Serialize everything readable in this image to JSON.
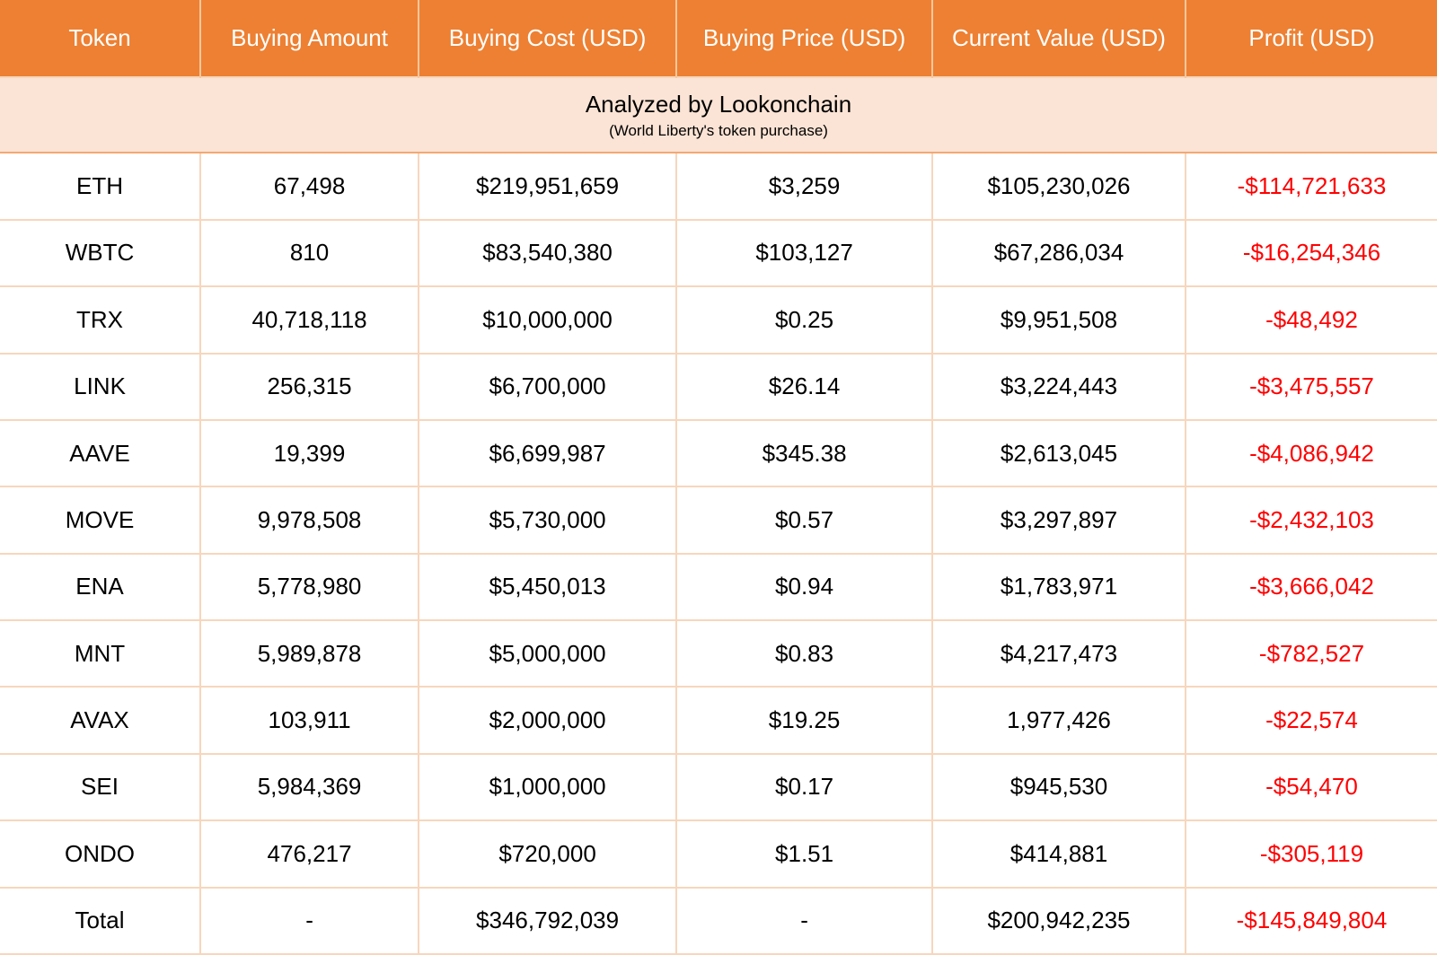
{
  "colors": {
    "header_bg": "#ED8032",
    "header_text": "#FFFFFF",
    "header_divider": "#F5C79E",
    "band_bg": "#FBE4D5",
    "grid_light": "#F7D6BC",
    "grid_strong": "#F2A873",
    "cell_text": "#000000",
    "profit_negative": "#FF0000"
  },
  "band": {
    "title": "Analyzed by Lookonchain",
    "note": "(World Liberty's token purchase)"
  },
  "chart_data": {
    "type": "table",
    "title": "Analyzed by Lookonchain",
    "subtitle": "(World Liberty's token purchase)",
    "columns": [
      "Token",
      "Buying Amount",
      "Buying Cost (USD)",
      "Buying Price (USD)",
      "Current Value (USD)",
      "Profit (USD)"
    ],
    "rows": [
      [
        "ETH",
        "67,498",
        "$219,951,659",
        "$3,259",
        "$105,230,026",
        "-$114,721,633"
      ],
      [
        "WBTC",
        "810",
        "$83,540,380",
        "$103,127",
        "$67,286,034",
        "-$16,254,346"
      ],
      [
        "TRX",
        "40,718,118",
        "$10,000,000",
        "$0.25",
        "$9,951,508",
        "-$48,492"
      ],
      [
        "LINK",
        "256,315",
        "$6,700,000",
        "$26.14",
        "$3,224,443",
        "-$3,475,557"
      ],
      [
        "AAVE",
        "19,399",
        "$6,699,987",
        "$345.38",
        "$2,613,045",
        "-$4,086,942"
      ],
      [
        "MOVE",
        "9,978,508",
        "$5,730,000",
        "$0.57",
        "$3,297,897",
        "-$2,432,103"
      ],
      [
        "ENA",
        "5,778,980",
        "$5,450,013",
        "$0.94",
        "$1,783,971",
        "-$3,666,042"
      ],
      [
        "MNT",
        "5,989,878",
        "$5,000,000",
        "$0.83",
        "$4,217,473",
        "-$782,527"
      ],
      [
        "AVAX",
        "103,911",
        "$2,000,000",
        "$19.25",
        "1,977,426",
        "-$22,574"
      ],
      [
        "SEI",
        "5,984,369",
        "$1,000,000",
        "$0.17",
        "$945,530",
        "-$54,470"
      ],
      [
        "ONDO",
        "476,217",
        "$720,000",
        "$1.51",
        "$414,881",
        "-$305,119"
      ],
      [
        "Total",
        "-",
        "$346,792,039",
        "-",
        "$200,942,235",
        "-$145,849,804"
      ]
    ],
    "column_widths_pct": [
      13.94,
      15.19,
      17.94,
      17.81,
      17.62,
      17.5
    ],
    "notes": "Negative profit values rendered in red; AVAX current value shown without $ prefix as in source."
  }
}
